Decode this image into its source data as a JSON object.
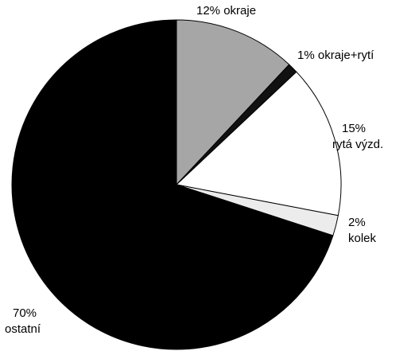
{
  "chart_data": {
    "type": "pie",
    "title": "",
    "start_angle": "12 o'clock",
    "direction": "clockwise",
    "slices": [
      {
        "percent_label": "12%",
        "category": "okraje",
        "value": 12,
        "color": "#a6a6a6"
      },
      {
        "percent_label": "1%",
        "category": "okraje+rytí",
        "value": 1,
        "color": "#111111"
      },
      {
        "percent_label": "15%",
        "category": "rytá výzd.",
        "value": 15,
        "color": "#ffffff"
      },
      {
        "percent_label": "2%",
        "category": "kolek",
        "value": 2,
        "color": "#ececec"
      },
      {
        "percent_label": "70%",
        "category": "ostatní",
        "value": 70,
        "color": "#000000"
      }
    ],
    "outline_color": "#000000"
  }
}
